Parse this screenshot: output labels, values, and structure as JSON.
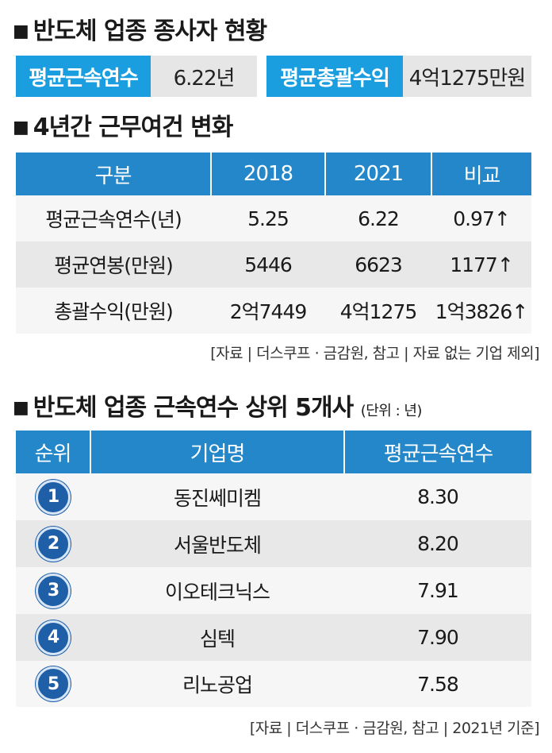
{
  "section1": {
    "title": "반도체 업종 종사자 현황",
    "stats": [
      {
        "label": "평균근속연수",
        "value": "6.22년"
      },
      {
        "label": "평균총괄수익",
        "value": "4억1275만원"
      }
    ]
  },
  "section2": {
    "title": "4년간 근무여건 변화",
    "headers": [
      "구분",
      "2018",
      "2021",
      "비교"
    ],
    "rows": [
      [
        "평균근속연수(년)",
        "5.25",
        "6.22",
        "0.97↑"
      ],
      [
        "평균연봉(만원)",
        "5446",
        "6623",
        "1177↑"
      ],
      [
        "총괄수익(만원)",
        "2억7449",
        "4억1275",
        "1억3826↑"
      ]
    ],
    "source": "[자료 | 더스쿠프 · 금감원, 참고 | 자료 없는 기업 제외]"
  },
  "section3": {
    "title": "반도체 업종 근속연수 상위 5개사",
    "unit": "(단위 : 년)",
    "headers": [
      "순위",
      "기업명",
      "평균근속연수"
    ],
    "rows": [
      {
        "rank": "1",
        "company": "동진쎄미켐",
        "years": "8.30"
      },
      {
        "rank": "2",
        "company": "서울반도체",
        "years": "8.20"
      },
      {
        "rank": "3",
        "company": "이오테크닉스",
        "years": "7.91"
      },
      {
        "rank": "4",
        "company": "심텍",
        "years": "7.90"
      },
      {
        "rank": "5",
        "company": "리노공업",
        "years": "7.58"
      }
    ],
    "source": "[자료 | 더스쿠프 · 금감원, 참고 | 2021년 기준]"
  }
}
